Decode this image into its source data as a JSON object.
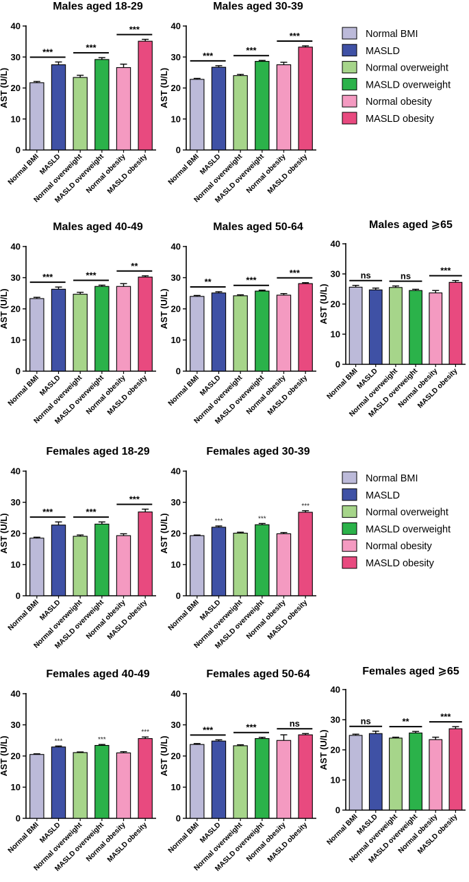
{
  "colors": {
    "Normal BMI": "#bcbad9",
    "MASLD": "#3f51a5",
    "Normal overweight": "#a6d58a",
    "MASLD overweight": "#2bb24a",
    "Normal obesity": "#f49ac1",
    "MASLD obesity": "#e84a7f"
  },
  "legends": [
    {
      "items": [
        "Normal BMI",
        "MASLD",
        "Normal overweight",
        "MASLD overweight",
        "Normal obesity",
        "MASLD obesity"
      ]
    },
    {
      "items": [
        "Normal BMI",
        "MASLD",
        "Normal overweight",
        "MASLD overweight",
        "Normal obesity",
        "MASLD obesity"
      ]
    }
  ],
  "chart_data": [
    {
      "type": "bar",
      "title": "Males aged 18-29",
      "ylabel": "AST (U/L)",
      "ylim": [
        0,
        40
      ],
      "yticks": [
        0,
        10,
        20,
        30,
        40
      ],
      "categories": [
        "Normal BMI",
        "MASLD",
        "Normal overweight",
        "MASLD overweight",
        "Normal obesity",
        "MASLD obesity"
      ],
      "values": [
        21.7,
        27.5,
        23.4,
        29.2,
        26.6,
        35.1
      ],
      "errors": [
        0.4,
        0.9,
        0.7,
        0.6,
        1.1,
        0.6
      ],
      "comparisons": [
        {
          "pair": [
            0,
            1
          ],
          "label": "***"
        },
        {
          "pair": [
            2,
            3
          ],
          "label": "***"
        },
        {
          "pair": [
            4,
            5
          ],
          "label": "***"
        }
      ],
      "star_labels": []
    },
    {
      "type": "bar",
      "title": "Males aged 30-39",
      "ylabel": "AST (U/L)",
      "ylim": [
        0,
        40
      ],
      "yticks": [
        0,
        10,
        20,
        30,
        40
      ],
      "categories": [
        "Normal BMI",
        "MASLD",
        "Normal overweight",
        "MASLD overweight",
        "Normal obesity",
        "MASLD obesity"
      ],
      "values": [
        22.8,
        26.7,
        24.0,
        28.6,
        27.5,
        33.2
      ],
      "errors": [
        0.3,
        0.5,
        0.4,
        0.3,
        0.8,
        0.4
      ],
      "comparisons": [
        {
          "pair": [
            0,
            1
          ],
          "label": "***"
        },
        {
          "pair": [
            2,
            3
          ],
          "label": "***"
        },
        {
          "pair": [
            4,
            5
          ],
          "label": "***"
        }
      ],
      "star_labels": []
    },
    {
      "type": "bar",
      "title": "Males aged 40-49",
      "ylabel": "AST (U/L)",
      "ylim": [
        0,
        40
      ],
      "yticks": [
        0,
        10,
        20,
        30,
        40
      ],
      "categories": [
        "Normal BMI",
        "MASLD",
        "Normal overweight",
        "MASLD overweight",
        "Normal obesity",
        "MASLD obesity"
      ],
      "values": [
        23.3,
        26.3,
        24.7,
        27.2,
        27.2,
        30.2
      ],
      "errors": [
        0.4,
        0.7,
        0.6,
        0.4,
        0.9,
        0.4
      ],
      "comparisons": [
        {
          "pair": [
            0,
            1
          ],
          "label": "***"
        },
        {
          "pair": [
            2,
            3
          ],
          "label": "***"
        },
        {
          "pair": [
            4,
            5
          ],
          "label": "**"
        }
      ],
      "star_labels": []
    },
    {
      "type": "bar",
      "title": "Males aged 50-64",
      "ylabel": "AST (U/L)",
      "ylim": [
        0,
        40
      ],
      "yticks": [
        0,
        10,
        20,
        30,
        40
      ],
      "categories": [
        "Normal BMI",
        "MASLD",
        "Normal overweight",
        "MASLD overweight",
        "Normal obesity",
        "MASLD obesity"
      ],
      "values": [
        24.0,
        25.1,
        24.2,
        25.7,
        24.4,
        28.1
      ],
      "errors": [
        0.3,
        0.4,
        0.3,
        0.3,
        0.5,
        0.3
      ],
      "comparisons": [
        {
          "pair": [
            0,
            1
          ],
          "label": "**"
        },
        {
          "pair": [
            2,
            3
          ],
          "label": "***"
        },
        {
          "pair": [
            4,
            5
          ],
          "label": "***"
        }
      ],
      "star_labels": []
    },
    {
      "type": "bar",
      "title": "Males aged ⩾65",
      "ylabel": "AST (U/L)",
      "ylim": [
        0,
        40
      ],
      "yticks": [
        0,
        10,
        20,
        30,
        40
      ],
      "categories": [
        "Normal BMI",
        "MASLD",
        "Normal overweight",
        "MASLD overweight",
        "Normal obesity",
        "MASLD obesity"
      ],
      "values": [
        25.6,
        24.7,
        25.5,
        24.5,
        23.7,
        27.2
      ],
      "errors": [
        0.6,
        0.6,
        0.5,
        0.4,
        0.8,
        0.6
      ],
      "comparisons": [
        {
          "pair": [
            0,
            1
          ],
          "label": "ns"
        },
        {
          "pair": [
            2,
            3
          ],
          "label": "ns"
        },
        {
          "pair": [
            4,
            5
          ],
          "label": "***"
        }
      ],
      "star_labels": []
    },
    {
      "type": "bar",
      "title": "Females aged 18-29",
      "ylabel": "AST (U/L)",
      "ylim": [
        0,
        40
      ],
      "yticks": [
        0,
        10,
        20,
        30,
        40
      ],
      "categories": [
        "Normal BMI",
        "MASLD",
        "Normal overweight",
        "MASLD overweight",
        "Normal obesity",
        "MASLD obesity"
      ],
      "values": [
        18.5,
        22.7,
        19.1,
        23.0,
        19.3,
        26.9
      ],
      "errors": [
        0.3,
        1.0,
        0.4,
        0.7,
        0.6,
        0.9
      ],
      "comparisons": [
        {
          "pair": [
            0,
            1
          ],
          "label": "***"
        },
        {
          "pair": [
            2,
            3
          ],
          "label": "***"
        },
        {
          "pair": [
            4,
            5
          ],
          "label": "***"
        }
      ],
      "star_labels": []
    },
    {
      "type": "bar",
      "title": "Females aged 30-39",
      "ylabel": "AST (U/L)",
      "ylim": [
        0,
        40
      ],
      "yticks": [
        0,
        10,
        20,
        30,
        40
      ],
      "categories": [
        "Normal BMI",
        "MASLD",
        "Normal overweight",
        "MASLD overweight",
        "Normal obesity",
        "MASLD obesity"
      ],
      "values": [
        19.3,
        22.0,
        20.1,
        22.8,
        19.9,
        26.8
      ],
      "errors": [
        0.2,
        0.4,
        0.3,
        0.4,
        0.4,
        0.5
      ],
      "comparisons": [],
      "star_labels": [
        {
          "index": 1,
          "label": "***"
        },
        {
          "index": 3,
          "label": "***"
        },
        {
          "index": 5,
          "label": "***"
        }
      ]
    },
    {
      "type": "bar",
      "title": "Females aged 40-49",
      "ylabel": "AST (U/L)",
      "ylim": [
        0,
        40
      ],
      "yticks": [
        0,
        10,
        20,
        30,
        40
      ],
      "categories": [
        "Normal BMI",
        "MASLD",
        "Normal overweight",
        "MASLD overweight",
        "Normal obesity",
        "MASLD obesity"
      ],
      "values": [
        20.5,
        22.9,
        21.1,
        23.4,
        21.0,
        25.6
      ],
      "errors": [
        0.2,
        0.3,
        0.2,
        0.3,
        0.4,
        0.5
      ],
      "comparisons": [],
      "star_labels": [
        {
          "index": 1,
          "label": "***"
        },
        {
          "index": 3,
          "label": "***"
        },
        {
          "index": 5,
          "label": "***"
        }
      ]
    },
    {
      "type": "bar",
      "title": "Females aged 50-64",
      "ylabel": "AST (U/L)",
      "ylim": [
        0,
        40
      ],
      "yticks": [
        0,
        10,
        20,
        30,
        40
      ],
      "categories": [
        "Normal BMI",
        "MASLD",
        "Normal overweight",
        "MASLD overweight",
        "Normal obesity",
        "MASLD obesity"
      ],
      "values": [
        23.7,
        24.8,
        23.3,
        25.6,
        25.0,
        26.8
      ],
      "errors": [
        0.3,
        0.4,
        0.3,
        0.4,
        1.8,
        0.4
      ],
      "comparisons": [
        {
          "pair": [
            0,
            1
          ],
          "label": "***"
        },
        {
          "pair": [
            2,
            3
          ],
          "label": "***"
        },
        {
          "pair": [
            4,
            5
          ],
          "label": "ns"
        }
      ],
      "star_labels": []
    },
    {
      "type": "bar",
      "title": "Females aged ⩾65",
      "ylabel": "AST (U/L)",
      "ylim": [
        0,
        40
      ],
      "yticks": [
        0,
        10,
        20,
        30,
        40
      ],
      "categories": [
        "Normal BMI",
        "MASLD",
        "Normal overweight",
        "MASLD overweight",
        "Normal obesity",
        "MASLD obesity"
      ],
      "values": [
        24.8,
        25.4,
        23.9,
        25.6,
        23.4,
        27.0
      ],
      "errors": [
        0.4,
        0.8,
        0.3,
        0.5,
        0.8,
        0.7
      ],
      "comparisons": [
        {
          "pair": [
            0,
            1
          ],
          "label": "ns"
        },
        {
          "pair": [
            2,
            3
          ],
          "label": "**"
        },
        {
          "pair": [
            4,
            5
          ],
          "label": "***"
        }
      ],
      "star_labels": []
    }
  ]
}
